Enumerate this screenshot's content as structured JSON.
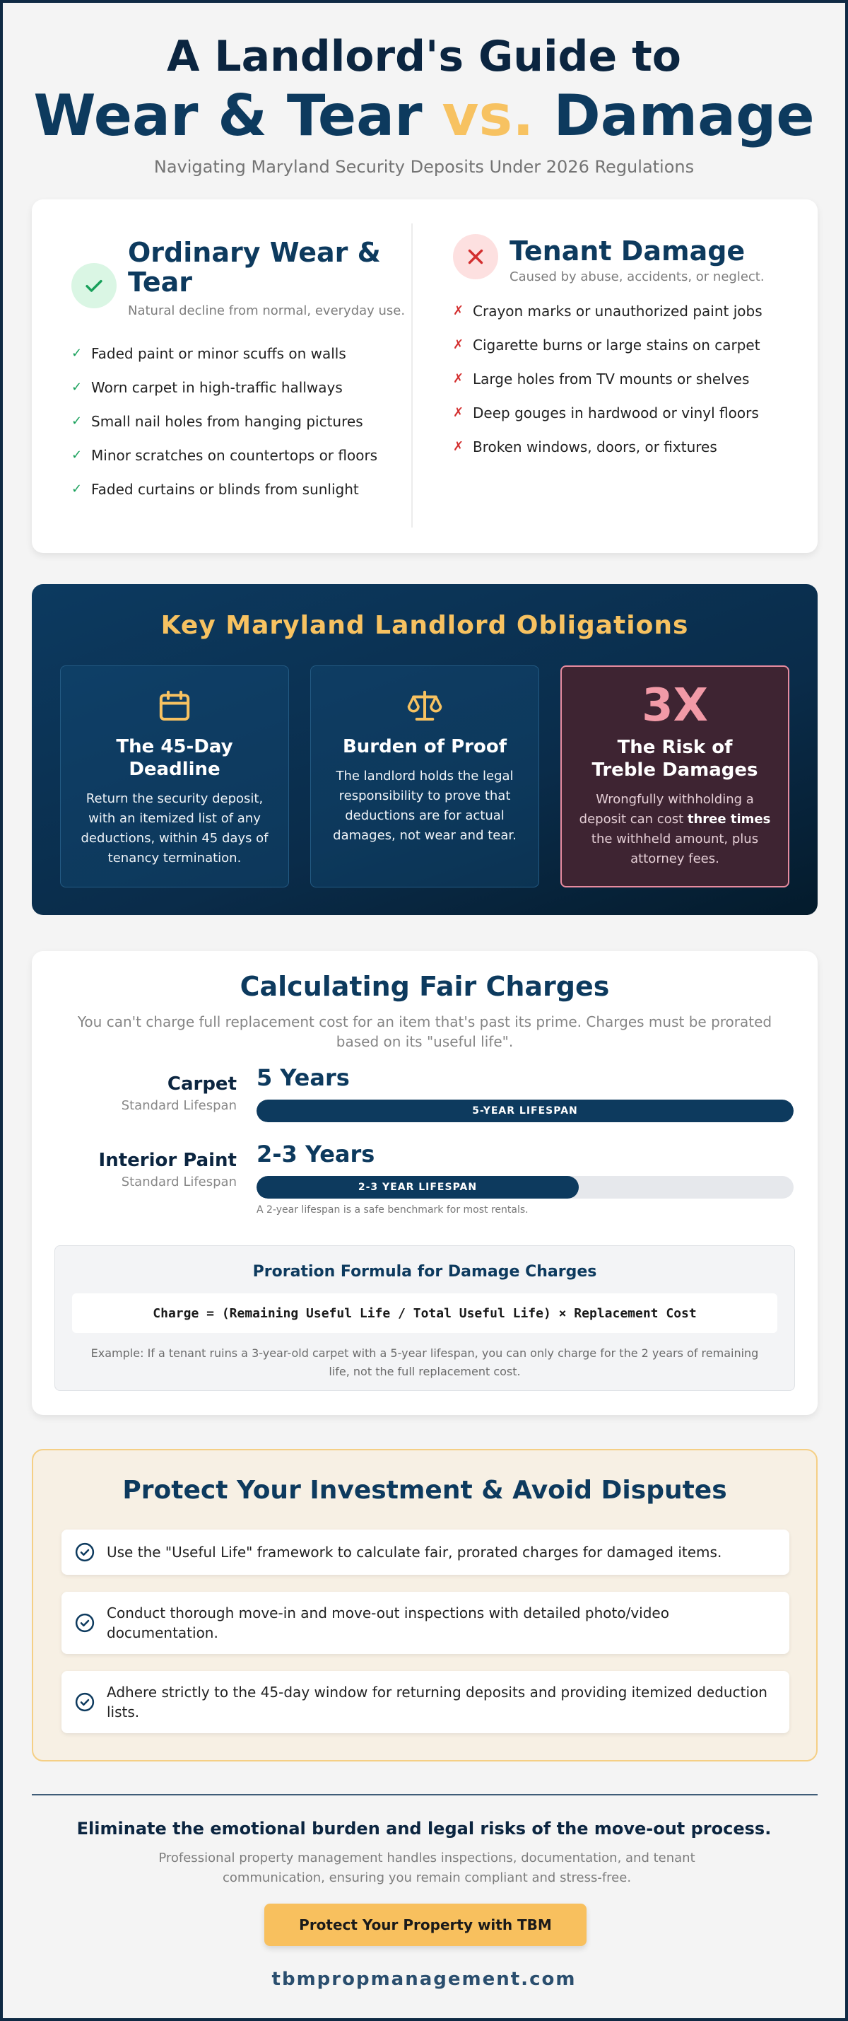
{
  "header": {
    "title_line1": "A Landlord's Guide to",
    "title_line2_a": "Wear & Tear ",
    "title_line2_vs": "vs.",
    "title_line2_b": " Damage",
    "subtitle": "Navigating Maryland Security Deposits Under 2026 Regulations"
  },
  "wear": {
    "title": "Ordinary Wear & Tear",
    "note": "Natural decline from normal, everyday use.",
    "icon": "check-icon",
    "items": [
      "Faded paint or minor scuffs on walls",
      "Worn carpet in high-traffic hallways",
      "Small nail holes from hanging pictures",
      "Minor scratches on countertops or floors",
      "Faded curtains or blinds from sunlight"
    ]
  },
  "damage": {
    "title": "Tenant Damage",
    "note": "Caused by abuse, accidents, or neglect.",
    "icon": "x-icon",
    "items": [
      "Crayon marks or unauthorized paint jobs",
      "Cigarette burns or large stains on carpet",
      "Large holes from TV mounts or shelves",
      "Deep gouges in hardwood or vinyl floors",
      "Broken windows, doors, or fixtures"
    ]
  },
  "obligations": {
    "title": "Key Maryland Landlord Obligations",
    "cards": [
      {
        "icon": "calendar-icon",
        "head": "The 45-Day Deadline",
        "text": "Return the security deposit, with an itemized list of any deductions, within 45 days of tenancy termination."
      },
      {
        "icon": "scales-icon",
        "head": "Burden of Proof",
        "text": "The landlord holds the legal responsibility to prove that deductions are for actual damages, not wear and tear."
      },
      {
        "big": "3X",
        "head": "The Risk of Treble Damages",
        "text_a": "Wrongfully withholding a deposit can cost ",
        "text_bold": "three times",
        "text_b": " the withheld amount, plus attorney fees."
      }
    ]
  },
  "calc": {
    "title": "Calculating Fair Charges",
    "subtitle": "You can't charge full replacement cost for an item that's past its prime. Charges must be prorated based on its \"useful life\".",
    "rows": [
      {
        "name": "Carpet",
        "std": "Standard Lifespan",
        "years": "5 Years",
        "bar_label": "5-YEAR LIFESPAN",
        "fill": 1.0,
        "note": ""
      },
      {
        "name": "Interior Paint",
        "std": "Standard Lifespan",
        "years": "2-3 Years",
        "bar_label": "2-3 YEAR LIFESPAN",
        "fill": 0.6,
        "note": "A 2-year lifespan is a safe benchmark for most rentals."
      }
    ],
    "formula_title": "Proration Formula for Damage Charges",
    "formula": "Charge = (Remaining Useful Life / Total Useful Life) × Replacement Cost",
    "example": "Example: If a tenant ruins a 3-year-old carpet with a 5-year lifespan, you can only charge for the 2 years of remaining life, not the full replacement cost."
  },
  "protect": {
    "title": "Protect Your Investment & Avoid Disputes",
    "items": [
      "Use the \"Useful Life\" framework to calculate fair, prorated charges for damaged items.",
      "Conduct thorough move-in and move-out inspections with detailed photo/video documentation.",
      "Adhere strictly to the 45-day window for returning deposits and providing itemized deduction lists."
    ]
  },
  "footer": {
    "headline": "Eliminate the emotional burden and legal risks of the move-out process.",
    "text": "Professional property management handles inspections, documentation, and tenant communication, ensuring you remain compliant and stress-free.",
    "cta": "Protect Your Property with TBM",
    "site": "tbmpropmanagement.com"
  },
  "colors": {
    "navy": "#0d3a5e",
    "gold": "#f7c261",
    "green": "#17a05a",
    "red": "#d32f2f"
  }
}
